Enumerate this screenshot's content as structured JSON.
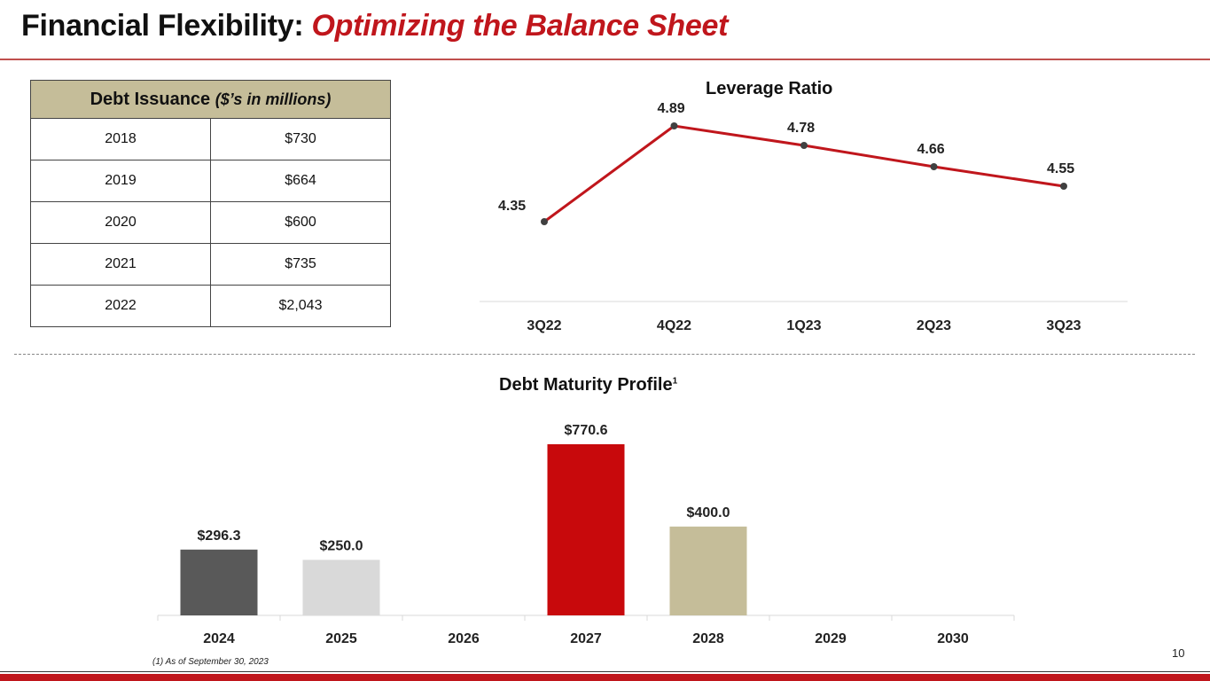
{
  "header": {
    "title_main": "Financial Flexibility: ",
    "title_accent": "Optimizing the Balance Sheet"
  },
  "debt_table": {
    "header_label": "Debt Issuance ",
    "header_unit": "($’s in millions)",
    "rows": [
      {
        "year": "2018",
        "amount": "$730"
      },
      {
        "year": "2019",
        "amount": "$664"
      },
      {
        "year": "2020",
        "amount": "$600"
      },
      {
        "year": "2021",
        "amount": "$735"
      },
      {
        "year": "2022",
        "amount": "$2,043"
      }
    ]
  },
  "chart_data": [
    {
      "type": "line",
      "title": "Leverage Ratio",
      "categories": [
        "3Q22",
        "4Q22",
        "1Q23",
        "2Q23",
        "3Q23"
      ],
      "values": [
        4.35,
        4.89,
        4.78,
        4.66,
        4.55
      ],
      "labels": [
        "4.35",
        "4.89",
        "4.78",
        "4.66",
        "4.55"
      ],
      "ylim": [
        3.8,
        5.0
      ],
      "color": "#c0161c",
      "grid": false
    },
    {
      "type": "bar",
      "title": "Debt Maturity Profile",
      "title_superscript": "1",
      "categories": [
        "2024",
        "2025",
        "2026",
        "2027",
        "2028",
        "2029",
        "2030"
      ],
      "values": [
        296.3,
        250.0,
        0,
        770.6,
        400.0,
        0,
        0
      ],
      "labels": [
        "$296.3",
        "$250.0",
        "",
        "$770.6",
        "$400.0",
        "",
        ""
      ],
      "colors": [
        "#595959",
        "#d9d9d9",
        "#ffffff",
        "#c8090c",
        "#c5bd99",
        "#ffffff",
        "#ffffff"
      ],
      "ylim": [
        0,
        770.6
      ],
      "grid": false
    }
  ],
  "footer": {
    "footnote": "(1) As of September 30, 2023",
    "page_number": "10"
  }
}
